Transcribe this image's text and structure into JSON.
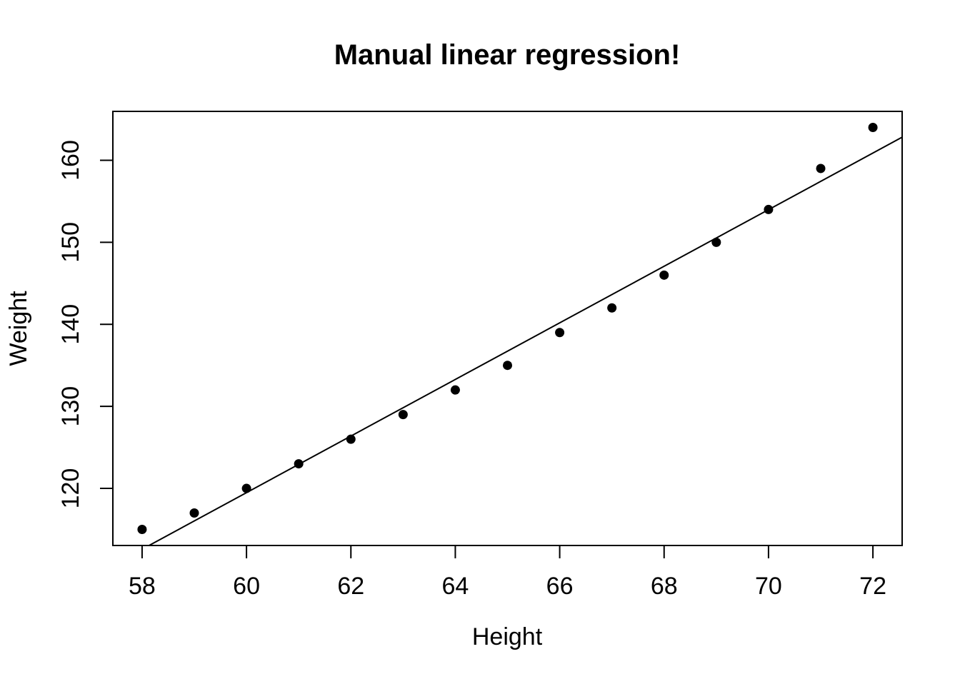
{
  "page": {
    "background_color": "#ffffff"
  },
  "chart_data": {
    "type": "scatter",
    "title": "Manual linear regression!",
    "xlabel": "Height",
    "ylabel": "Weight",
    "points": {
      "x": [
        58,
        59,
        60,
        61,
        62,
        63,
        64,
        65,
        66,
        67,
        68,
        69,
        70,
        71,
        72
      ],
      "y": [
        115,
        117,
        120,
        123,
        126,
        129,
        132,
        135,
        139,
        142,
        146,
        150,
        154,
        159,
        164
      ]
    },
    "regression_line": {
      "slope": 3.45,
      "intercept": -87.52
    },
    "xticks": [
      58,
      60,
      62,
      64,
      66,
      68,
      70,
      72
    ],
    "yticks": [
      120,
      130,
      140,
      150,
      160
    ],
    "xlim": [
      57.44,
      72.56
    ],
    "ylim": [
      113.04,
      165.96
    ],
    "grid": false,
    "legend": null,
    "colors": {
      "points": "#000000",
      "line": "#000000",
      "axis": "#000000",
      "text": "#000000",
      "background": "#ffffff"
    }
  }
}
